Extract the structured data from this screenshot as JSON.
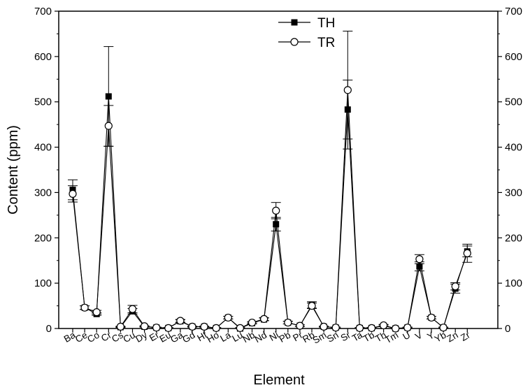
{
  "chart_data": {
    "type": "line",
    "title": "",
    "xlabel": "Element",
    "ylabel": "Content (ppm)",
    "ylim": [
      0,
      700
    ],
    "yticks": [
      0,
      100,
      200,
      300,
      400,
      500,
      600,
      700
    ],
    "right_axis_mirrored": true,
    "legend_position": "top-center",
    "categories": [
      "Ba",
      "Ce",
      "Co",
      "Cr",
      "Cs",
      "Cu",
      "Dy",
      "Er",
      "Eu",
      "Ga",
      "Gd",
      "Hf",
      "Ho",
      "La",
      "Lu",
      "Nb",
      "Nd",
      "Ni",
      "Pb",
      "Pr",
      "Rb",
      "Sm",
      "Sn",
      "Sr",
      "Ta",
      "Tb",
      "Th",
      "Tm",
      "U",
      "V",
      "Y",
      "Yb",
      "Zn",
      "Zr"
    ],
    "series": [
      {
        "name": "TH",
        "marker": "filled-square",
        "values": [
          306,
          46,
          32,
          512,
          3,
          38,
          4,
          2,
          1,
          16,
          4,
          4,
          1,
          24,
          0,
          12,
          20,
          230,
          13,
          6,
          52,
          4,
          2,
          483,
          1,
          1,
          6,
          0,
          2,
          137,
          24,
          2,
          88,
          170
        ],
        "error": [
          22,
          4,
          3,
          110,
          1,
          6,
          1,
          1,
          1,
          3,
          1,
          1,
          1,
          3,
          1,
          2,
          3,
          15,
          3,
          2,
          7,
          1,
          1,
          65,
          1,
          1,
          2,
          1,
          1,
          10,
          3,
          1,
          10,
          12
        ]
      },
      {
        "name": "TR",
        "marker": "open-circle",
        "values": [
          297,
          46,
          36,
          447,
          4,
          43,
          5,
          2,
          1,
          17,
          4,
          4,
          1,
          24,
          1,
          13,
          21,
          260,
          13,
          6,
          50,
          4,
          2,
          526,
          1,
          1,
          7,
          0,
          2,
          153,
          24,
          2,
          93,
          166
        ],
        "error": [
          18,
          4,
          4,
          45,
          1,
          8,
          1,
          1,
          1,
          3,
          1,
          1,
          1,
          3,
          1,
          2,
          3,
          18,
          3,
          2,
          6,
          1,
          1,
          130,
          1,
          1,
          2,
          1,
          1,
          10,
          3,
          1,
          8,
          20
        ]
      }
    ]
  }
}
